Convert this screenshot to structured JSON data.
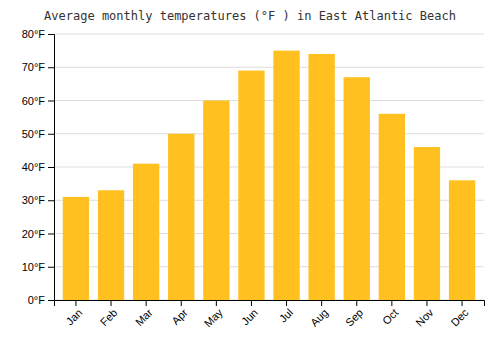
{
  "chart_data": {
    "type": "bar",
    "title": "Average monthly temperatures (°F ) in East Atlantic Beach",
    "categories": [
      "Jan",
      "Feb",
      "Mar",
      "Apr",
      "May",
      "Jun",
      "Jul",
      "Aug",
      "Sep",
      "Oct",
      "Nov",
      "Dec"
    ],
    "values": [
      31,
      33,
      41,
      50,
      60,
      69,
      75,
      74,
      67,
      56,
      46,
      36
    ],
    "color": "#FFC020",
    "ylim": [
      0,
      80
    ],
    "yticks": [
      {
        "value": 0,
        "label": "0°F"
      },
      {
        "value": 10,
        "label": "10°F"
      },
      {
        "value": 20,
        "label": "20°F"
      },
      {
        "value": 30,
        "label": "30°F"
      },
      {
        "value": 40,
        "label": "40°F"
      },
      {
        "value": 50,
        "label": "50°F"
      },
      {
        "value": 60,
        "label": "60°F"
      },
      {
        "value": 70,
        "label": "70°F"
      },
      {
        "value": 80,
        "label": "80°F"
      }
    ],
    "grid": true
  }
}
